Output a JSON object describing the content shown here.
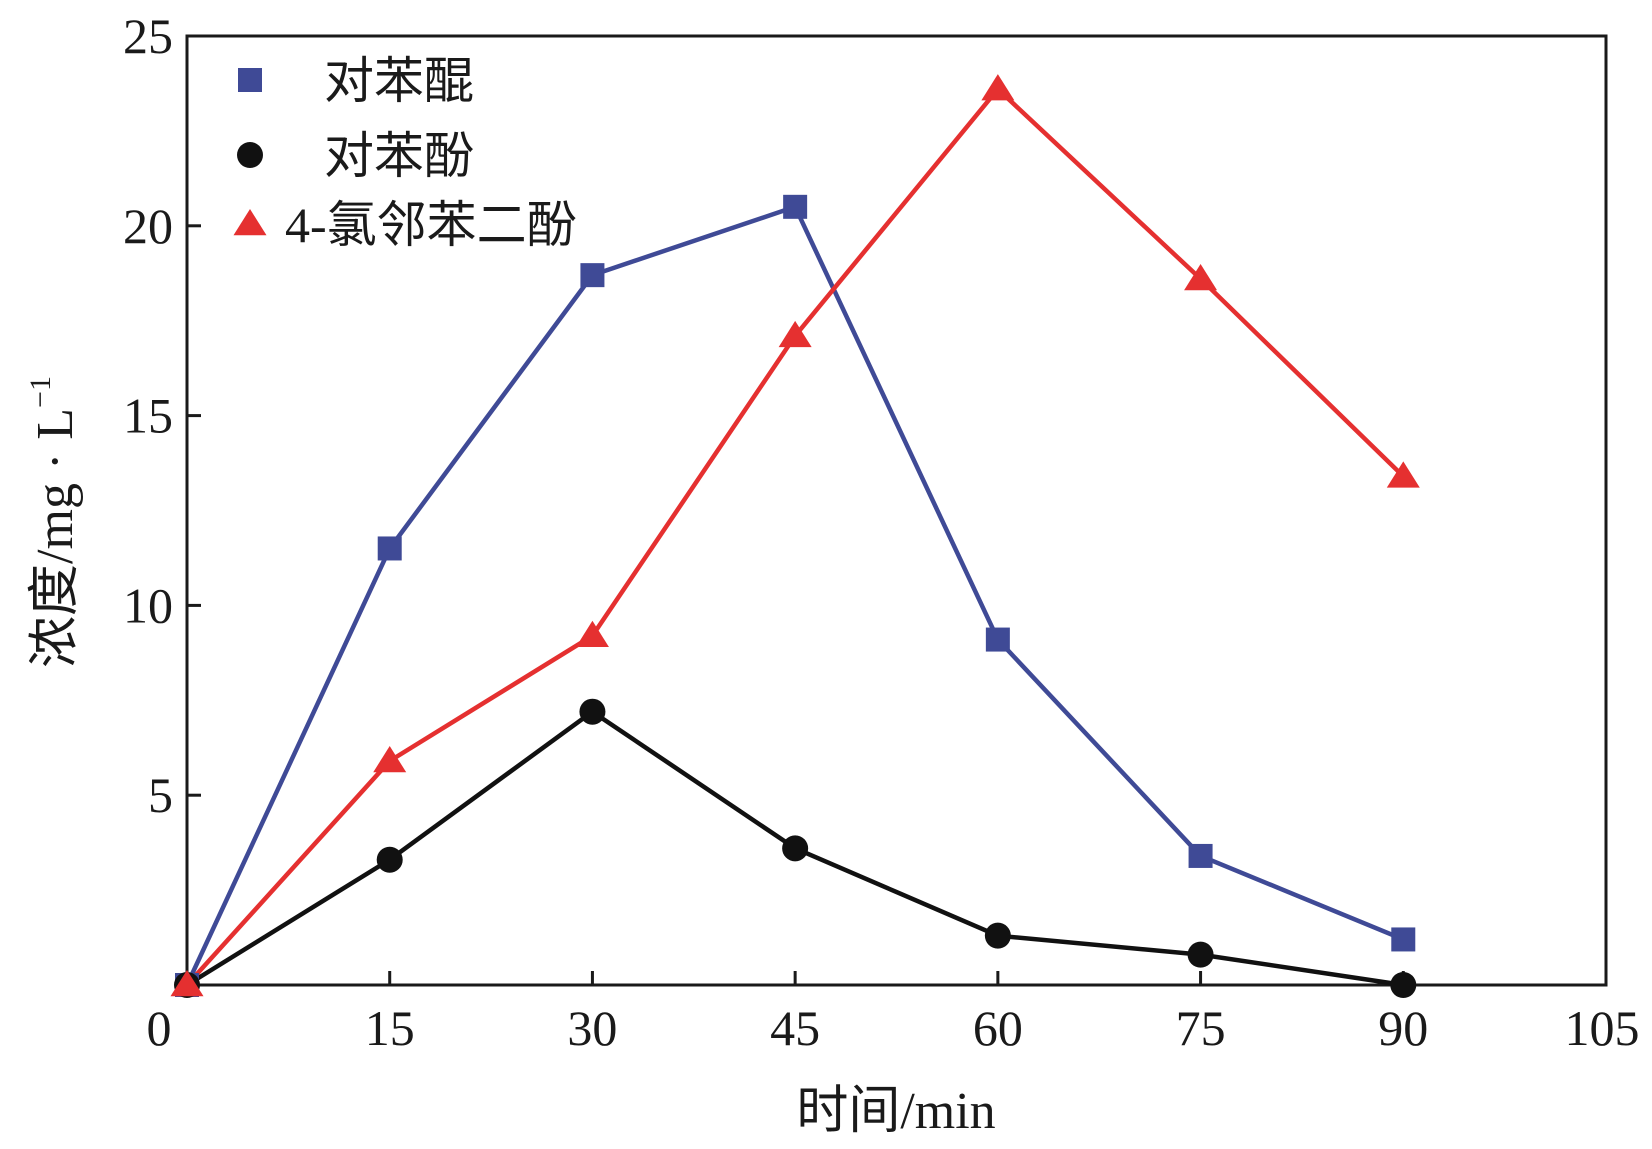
{
  "chart_data": {
    "type": "line",
    "title": "",
    "xlabel": "时间/min",
    "ylabel_main": "浓度/mg · L",
    "ylabel_sup": "−1",
    "xlim": [
      0,
      105
    ],
    "ylim": [
      0,
      25
    ],
    "x_ticks": [
      0,
      15,
      30,
      45,
      60,
      75,
      90,
      105
    ],
    "y_ticks": [
      5,
      10,
      15,
      20,
      25
    ],
    "y_origin_label": "0",
    "grid": false,
    "legend_position": "top-left",
    "series": [
      {
        "name": "对苯醌",
        "color": "#3f4a96",
        "marker": "square",
        "x": [
          0,
          15,
          30,
          45,
          60,
          75,
          90
        ],
        "y": [
          0,
          11.5,
          18.7,
          20.5,
          9.1,
          3.4,
          1.2
        ]
      },
      {
        "name": "对苯酚",
        "color": "#111111",
        "marker": "circle",
        "x": [
          0,
          15,
          30,
          45,
          60,
          75,
          90
        ],
        "y": [
          0,
          3.3,
          7.2,
          3.6,
          1.3,
          0.8,
          0
        ]
      },
      {
        "name": "4-氯邻苯二酚",
        "color": "#e53030",
        "marker": "triangle",
        "x": [
          0,
          15,
          30,
          45,
          60,
          75,
          90
        ],
        "y": [
          0,
          5.9,
          9.2,
          17.1,
          23.6,
          18.6,
          13.4
        ]
      }
    ]
  }
}
